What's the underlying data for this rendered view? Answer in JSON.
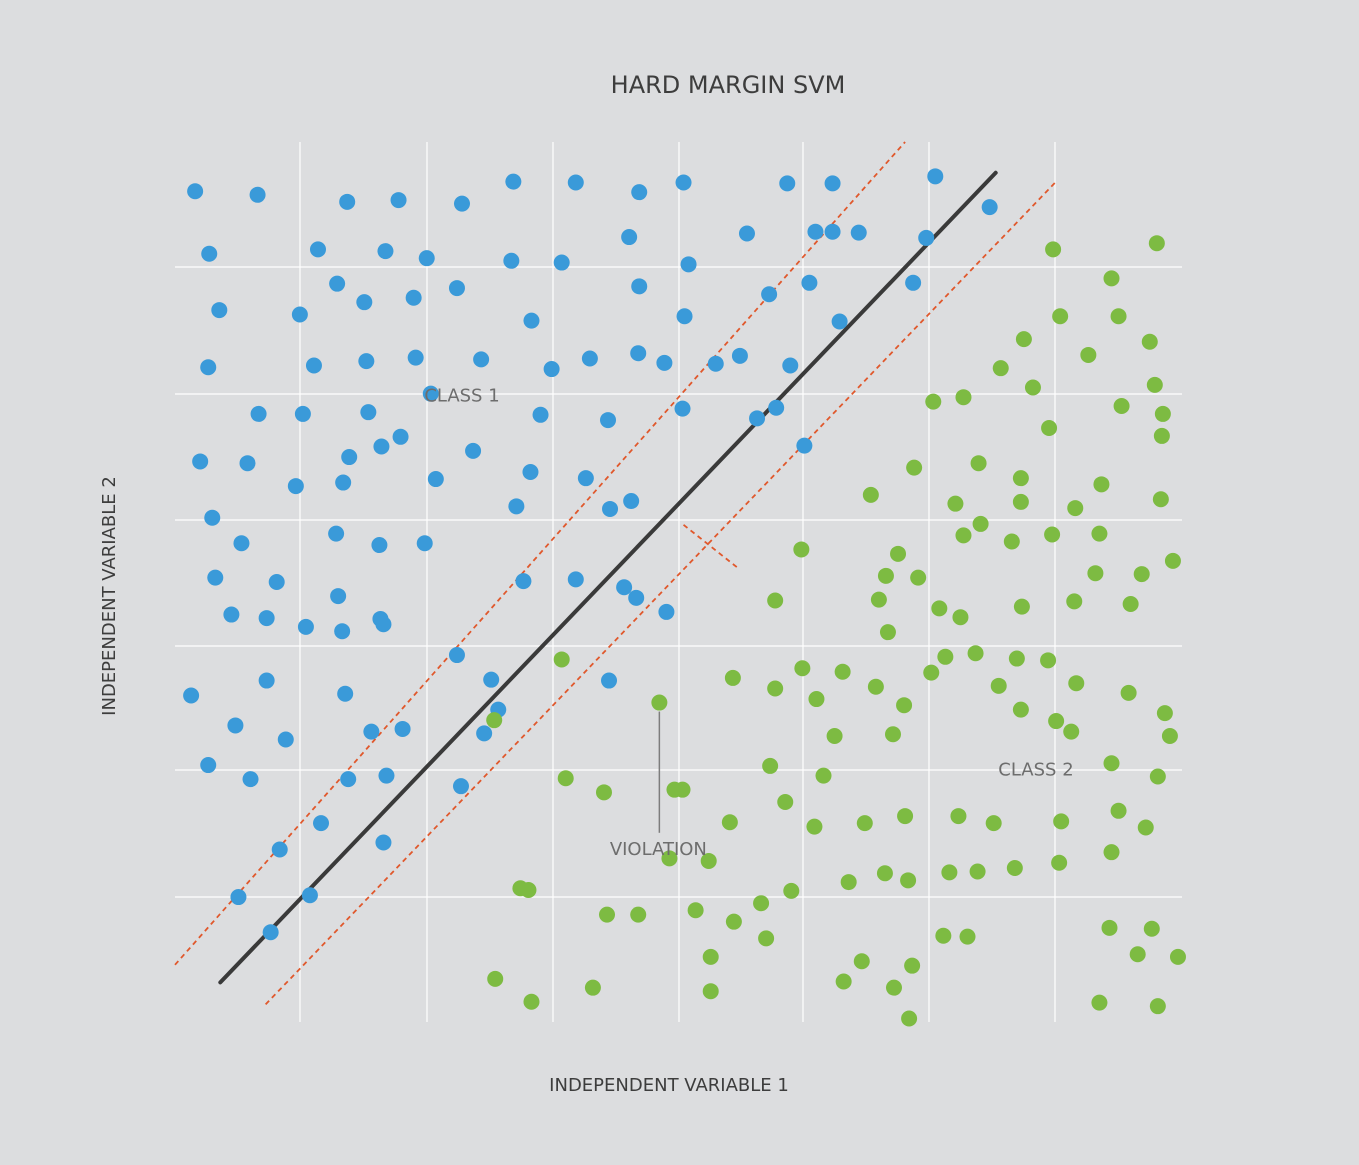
{
  "chart_data": {
    "type": "scatter",
    "title": "HARD MARGIN SVM",
    "xlabel": "INDEPENDENT VARIABLE 1",
    "ylabel": "INDEPENDENT VARIABLE 2",
    "xlim": [
      0,
      100
    ],
    "ylim": [
      0,
      100
    ],
    "grid": true,
    "colors": {
      "background": "#dcdddf",
      "grid": "#ffffff",
      "class1": "#3a9ad9",
      "class2": "#7dbb42",
      "hyperplane": "#3a3a3a",
      "margin": "#e0582c",
      "annotation": "#6d6d6d",
      "text": "#3d3d3d"
    },
    "series": [
      {
        "name": "CLASS 1",
        "points": [
          [
            2.0,
            94.4
          ],
          [
            8.2,
            94.0
          ],
          [
            17.1,
            93.2
          ],
          [
            22.2,
            93.4
          ],
          [
            28.5,
            93.0
          ],
          [
            33.6,
            95.5
          ],
          [
            39.8,
            95.4
          ],
          [
            46.1,
            94.3
          ],
          [
            50.5,
            95.4
          ],
          [
            60.8,
            95.3
          ],
          [
            65.3,
            95.3
          ],
          [
            75.5,
            96.1
          ],
          [
            80.9,
            92.6
          ],
          [
            3.4,
            87.3
          ],
          [
            14.2,
            87.8
          ],
          [
            20.9,
            87.6
          ],
          [
            25.0,
            86.8
          ],
          [
            33.4,
            86.5
          ],
          [
            38.4,
            86.3
          ],
          [
            45.1,
            89.2
          ],
          [
            51.0,
            86.1
          ],
          [
            56.8,
            89.6
          ],
          [
            63.6,
            89.8
          ],
          [
            65.3,
            89.8
          ],
          [
            67.9,
            89.7
          ],
          [
            74.6,
            89.1
          ],
          [
            4.4,
            80.9
          ],
          [
            12.4,
            80.4
          ],
          [
            16.1,
            83.9
          ],
          [
            18.8,
            81.8
          ],
          [
            23.7,
            82.3
          ],
          [
            28.0,
            83.4
          ],
          [
            35.4,
            79.7
          ],
          [
            46.1,
            83.6
          ],
          [
            50.6,
            80.2
          ],
          [
            59.0,
            82.7
          ],
          [
            63.0,
            84.0
          ],
          [
            66.0,
            79.6
          ],
          [
            73.3,
            84.0
          ],
          [
            3.3,
            74.4
          ],
          [
            13.8,
            74.6
          ],
          [
            19.0,
            75.1
          ],
          [
            23.9,
            75.5
          ],
          [
            30.4,
            75.3
          ],
          [
            37.4,
            74.2
          ],
          [
            41.2,
            75.4
          ],
          [
            46.0,
            76.0
          ],
          [
            48.6,
            74.9
          ],
          [
            53.7,
            74.8
          ],
          [
            56.1,
            75.7
          ],
          [
            61.1,
            74.6
          ],
          [
            8.3,
            69.1
          ],
          [
            12.7,
            69.1
          ],
          [
            19.2,
            69.3
          ],
          [
            25.4,
            71.4
          ],
          [
            36.3,
            69.0
          ],
          [
            43.0,
            68.4
          ],
          [
            50.4,
            69.7
          ],
          [
            57.8,
            68.6
          ],
          [
            59.7,
            69.8
          ],
          [
            62.5,
            65.5
          ],
          [
            2.5,
            63.7
          ],
          [
            7.2,
            63.5
          ],
          [
            12.0,
            60.9
          ],
          [
            16.7,
            61.3
          ],
          [
            17.3,
            64.2
          ],
          [
            20.5,
            65.4
          ],
          [
            22.4,
            66.5
          ],
          [
            25.9,
            61.7
          ],
          [
            29.6,
            64.9
          ],
          [
            33.9,
            58.6
          ],
          [
            35.3,
            62.5
          ],
          [
            40.8,
            61.8
          ],
          [
            43.2,
            58.3
          ],
          [
            45.3,
            59.2
          ],
          [
            3.7,
            57.3
          ],
          [
            6.6,
            54.4
          ],
          [
            16.0,
            55.5
          ],
          [
            20.3,
            54.2
          ],
          [
            24.8,
            54.4
          ],
          [
            4.0,
            50.5
          ],
          [
            10.1,
            50.0
          ],
          [
            16.2,
            48.4
          ],
          [
            20.4,
            45.8
          ],
          [
            34.6,
            50.1
          ],
          [
            39.8,
            50.3
          ],
          [
            44.6,
            49.4
          ],
          [
            45.8,
            48.2
          ],
          [
            48.8,
            46.6
          ],
          [
            5.6,
            46.3
          ],
          [
            9.1,
            45.9
          ],
          [
            13.0,
            44.9
          ],
          [
            16.6,
            44.4
          ],
          [
            20.7,
            45.2
          ],
          [
            28.0,
            41.7
          ],
          [
            32.1,
            35.5
          ],
          [
            1.6,
            37.1
          ],
          [
            9.1,
            38.8
          ],
          [
            16.9,
            37.3
          ],
          [
            31.4,
            38.9
          ],
          [
            43.1,
            38.8
          ],
          [
            6.0,
            33.7
          ],
          [
            11.0,
            32.1
          ],
          [
            19.5,
            33.0
          ],
          [
            22.6,
            33.3
          ],
          [
            30.7,
            32.8
          ],
          [
            3.3,
            29.2
          ],
          [
            7.5,
            27.6
          ],
          [
            17.2,
            27.6
          ],
          [
            21.0,
            28.0
          ],
          [
            28.4,
            26.8
          ],
          [
            14.5,
            22.6
          ],
          [
            10.4,
            19.6
          ],
          [
            20.7,
            20.4
          ],
          [
            6.3,
            14.2
          ],
          [
            13.4,
            14.4
          ],
          [
            9.5,
            10.2
          ]
        ]
      },
      {
        "name": "CLASS 2",
        "points": [
          [
            97.5,
            88.5
          ],
          [
            87.2,
            87.8
          ],
          [
            93.0,
            84.5
          ],
          [
            87.9,
            80.2
          ],
          [
            93.7,
            80.2
          ],
          [
            96.8,
            77.3
          ],
          [
            84.3,
            77.6
          ],
          [
            90.7,
            75.8
          ],
          [
            82.0,
            74.3
          ],
          [
            85.2,
            72.1
          ],
          [
            97.3,
            72.4
          ],
          [
            75.3,
            70.5
          ],
          [
            78.3,
            71.0
          ],
          [
            94.0,
            70.0
          ],
          [
            98.1,
            69.1
          ],
          [
            86.8,
            67.5
          ],
          [
            98.0,
            66.6
          ],
          [
            73.4,
            63.0
          ],
          [
            79.8,
            63.5
          ],
          [
            84.0,
            61.8
          ],
          [
            92.0,
            61.1
          ],
          [
            97.9,
            59.4
          ],
          [
            69.1,
            59.9
          ],
          [
            77.5,
            58.9
          ],
          [
            84.0,
            59.1
          ],
          [
            80.0,
            56.6
          ],
          [
            89.4,
            58.4
          ],
          [
            83.1,
            54.6
          ],
          [
            87.1,
            55.4
          ],
          [
            91.8,
            55.5
          ],
          [
            78.3,
            55.3
          ],
          [
            62.2,
            53.7
          ],
          [
            71.8,
            53.2
          ],
          [
            70.6,
            50.7
          ],
          [
            73.8,
            50.5
          ],
          [
            59.6,
            47.9
          ],
          [
            75.9,
            47.0
          ],
          [
            84.1,
            47.2
          ],
          [
            89.3,
            47.8
          ],
          [
            91.4,
            51.0
          ],
          [
            96.0,
            50.9
          ],
          [
            99.1,
            52.4
          ],
          [
            94.9,
            47.5
          ],
          [
            70.8,
            44.3
          ],
          [
            69.9,
            48.0
          ],
          [
            78.0,
            46.0
          ],
          [
            76.5,
            41.5
          ],
          [
            79.5,
            41.9
          ],
          [
            83.6,
            41.3
          ],
          [
            86.7,
            41.1
          ],
          [
            62.3,
            40.2
          ],
          [
            66.3,
            39.8
          ],
          [
            81.8,
            38.2
          ],
          [
            89.5,
            38.5
          ],
          [
            55.4,
            39.1
          ],
          [
            48.1,
            36.3
          ],
          [
            59.6,
            37.9
          ],
          [
            69.6,
            38.1
          ],
          [
            75.1,
            39.7
          ],
          [
            72.4,
            36.0
          ],
          [
            84.0,
            35.5
          ],
          [
            87.5,
            34.2
          ],
          [
            94.7,
            37.4
          ],
          [
            98.3,
            35.1
          ],
          [
            65.5,
            32.5
          ],
          [
            71.3,
            32.7
          ],
          [
            89.0,
            33.0
          ],
          [
            98.8,
            32.5
          ],
          [
            63.7,
            36.7
          ],
          [
            38.4,
            41.2
          ],
          [
            31.7,
            34.3
          ],
          [
            38.8,
            27.7
          ],
          [
            42.6,
            26.1
          ],
          [
            49.6,
            26.4
          ],
          [
            50.4,
            26.4
          ],
          [
            59.1,
            29.1
          ],
          [
            64.4,
            28.0
          ],
          [
            93.0,
            29.4
          ],
          [
            97.6,
            27.9
          ],
          [
            55.1,
            22.7
          ],
          [
            63.5,
            22.2
          ],
          [
            68.5,
            22.6
          ],
          [
            72.5,
            23.4
          ],
          [
            77.8,
            23.4
          ],
          [
            81.3,
            22.6
          ],
          [
            88.0,
            22.8
          ],
          [
            93.7,
            24.0
          ],
          [
            96.4,
            22.1
          ],
          [
            60.6,
            25.0
          ],
          [
            34.3,
            15.2
          ],
          [
            49.1,
            18.6
          ],
          [
            53.0,
            18.3
          ],
          [
            58.2,
            13.5
          ],
          [
            61.2,
            14.9
          ],
          [
            66.9,
            15.9
          ],
          [
            70.5,
            16.9
          ],
          [
            72.8,
            16.1
          ],
          [
            76.9,
            17.0
          ],
          [
            79.7,
            17.1
          ],
          [
            83.4,
            17.5
          ],
          [
            87.8,
            18.1
          ],
          [
            93.0,
            19.3
          ],
          [
            35.1,
            15.0
          ],
          [
            42.9,
            12.2
          ],
          [
            46.0,
            12.2
          ],
          [
            51.7,
            12.7
          ],
          [
            55.5,
            11.4
          ],
          [
            58.7,
            9.5
          ],
          [
            76.3,
            9.8
          ],
          [
            78.7,
            9.7
          ],
          [
            92.8,
            10.7
          ],
          [
            97.0,
            10.6
          ],
          [
            53.2,
            7.4
          ],
          [
            68.2,
            6.9
          ],
          [
            73.2,
            6.4
          ],
          [
            95.6,
            7.7
          ],
          [
            99.6,
            7.4
          ],
          [
            66.4,
            4.6
          ],
          [
            71.4,
            3.9
          ],
          [
            53.2,
            3.5
          ],
          [
            31.8,
            4.9
          ],
          [
            35.4,
            2.3
          ],
          [
            41.5,
            3.9
          ],
          [
            72.9,
            0.4
          ],
          [
            91.8,
            2.2
          ],
          [
            97.6,
            1.8
          ]
        ]
      }
    ],
    "hyperplane": {
      "from": [
        4.5,
        4.5
      ],
      "to": [
        81.5,
        96.5
      ]
    },
    "margins": [
      {
        "from": [
          0,
          6.5
        ],
        "to": [
          72.5,
          100
        ]
      },
      {
        "from": [
          9.0,
          2.0
        ],
        "to": [
          87.5,
          95.5
        ]
      }
    ],
    "margin_marker": {
      "from": [
        50.5,
        56.5
      ],
      "to": [
        56.0,
        51.5
      ]
    },
    "violation_point": [
      48.1,
      36.3
    ],
    "annotations": {
      "class1_label": "CLASS 1",
      "class2_label": "CLASS 2",
      "violation_label": "VIOLATION"
    },
    "annotation_positions": {
      "class1_label": [
        28.5,
        70.5
      ],
      "class2_label": [
        85.5,
        28.0
      ],
      "violation_label": [
        48.0,
        19.0
      ],
      "violation_line_end": [
        48.1,
        21.5
      ]
    }
  }
}
